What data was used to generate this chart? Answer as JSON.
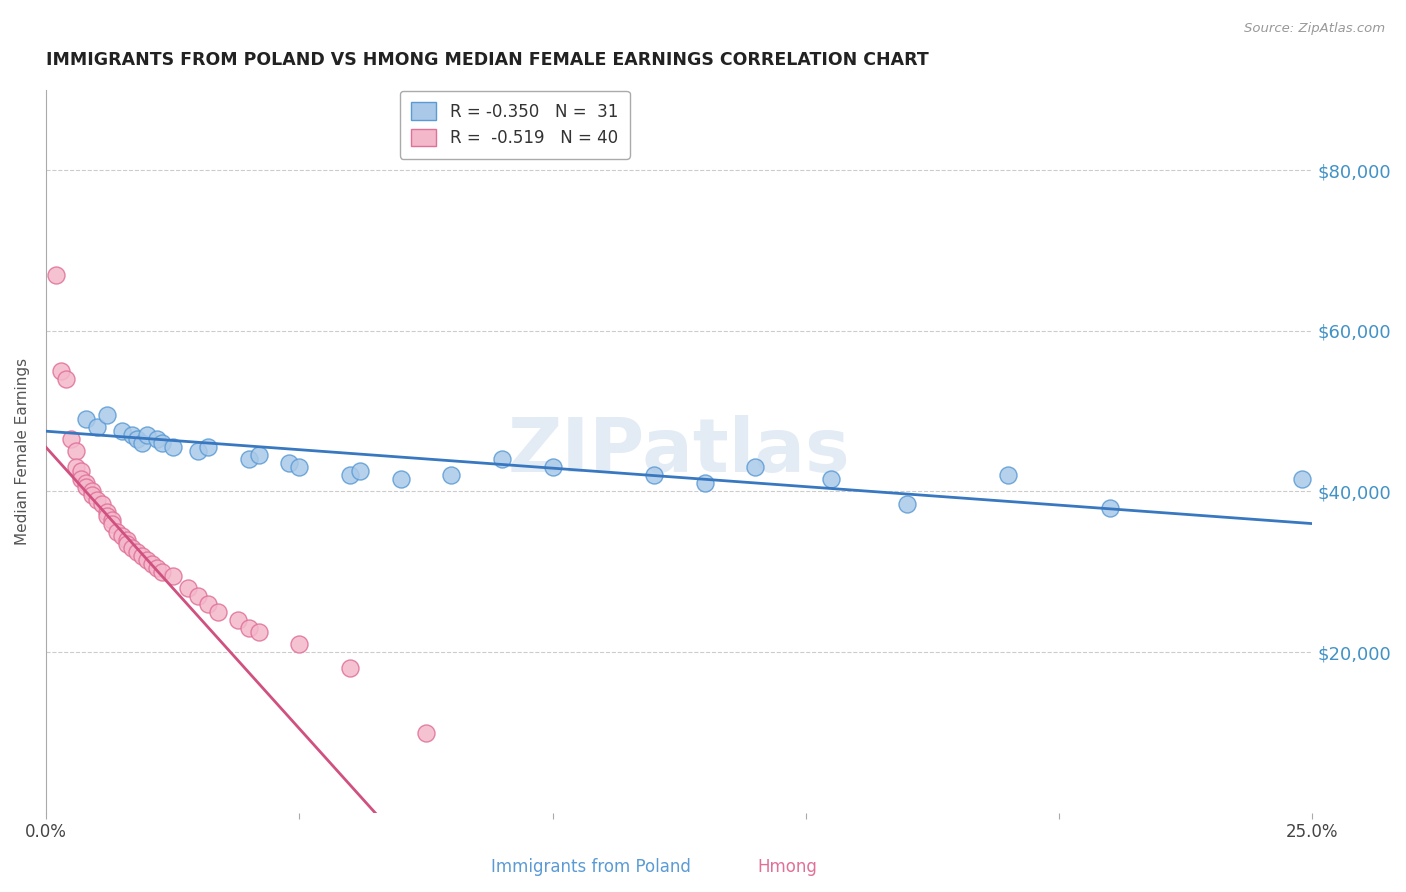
{
  "title": "IMMIGRANTS FROM POLAND VS HMONG MEDIAN FEMALE EARNINGS CORRELATION CHART",
  "source": "Source: ZipAtlas.com",
  "ylabel": "Median Female Earnings",
  "watermark": "ZIPatlas",
  "poland_scatter": [
    [
      0.008,
      49000
    ],
    [
      0.01,
      48000
    ],
    [
      0.012,
      49500
    ],
    [
      0.015,
      47500
    ],
    [
      0.017,
      47000
    ],
    [
      0.018,
      46500
    ],
    [
      0.019,
      46000
    ],
    [
      0.02,
      47000
    ],
    [
      0.022,
      46500
    ],
    [
      0.023,
      46000
    ],
    [
      0.025,
      45500
    ],
    [
      0.03,
      45000
    ],
    [
      0.032,
      45500
    ],
    [
      0.04,
      44000
    ],
    [
      0.042,
      44500
    ],
    [
      0.048,
      43500
    ],
    [
      0.05,
      43000
    ],
    [
      0.06,
      42000
    ],
    [
      0.062,
      42500
    ],
    [
      0.07,
      41500
    ],
    [
      0.08,
      42000
    ],
    [
      0.09,
      44000
    ],
    [
      0.1,
      43000
    ],
    [
      0.12,
      42000
    ],
    [
      0.13,
      41000
    ],
    [
      0.14,
      43000
    ],
    [
      0.155,
      41500
    ],
    [
      0.17,
      38500
    ],
    [
      0.19,
      42000
    ],
    [
      0.21,
      38000
    ],
    [
      0.248,
      41500
    ]
  ],
  "hmong_scatter": [
    [
      0.002,
      67000
    ],
    [
      0.003,
      55000
    ],
    [
      0.004,
      54000
    ],
    [
      0.005,
      46500
    ],
    [
      0.006,
      45000
    ],
    [
      0.006,
      43000
    ],
    [
      0.007,
      42500
    ],
    [
      0.007,
      41500
    ],
    [
      0.008,
      41000
    ],
    [
      0.008,
      40500
    ],
    [
      0.009,
      40000
    ],
    [
      0.009,
      39500
    ],
    [
      0.01,
      39000
    ],
    [
      0.011,
      38500
    ],
    [
      0.012,
      37500
    ],
    [
      0.012,
      37000
    ],
    [
      0.013,
      36500
    ],
    [
      0.013,
      36000
    ],
    [
      0.014,
      35000
    ],
    [
      0.015,
      34500
    ],
    [
      0.016,
      34000
    ],
    [
      0.016,
      33500
    ],
    [
      0.017,
      33000
    ],
    [
      0.018,
      32500
    ],
    [
      0.019,
      32000
    ],
    [
      0.02,
      31500
    ],
    [
      0.021,
      31000
    ],
    [
      0.022,
      30500
    ],
    [
      0.023,
      30000
    ],
    [
      0.025,
      29500
    ],
    [
      0.028,
      28000
    ],
    [
      0.03,
      27000
    ],
    [
      0.032,
      26000
    ],
    [
      0.034,
      25000
    ],
    [
      0.038,
      24000
    ],
    [
      0.04,
      23000
    ],
    [
      0.042,
      22500
    ],
    [
      0.05,
      21000
    ],
    [
      0.06,
      18000
    ],
    [
      0.075,
      10000
    ]
  ],
  "poland_line": {
    "x": [
      0.0,
      0.25
    ],
    "y": [
      47500,
      36000
    ]
  },
  "hmong_line": {
    "x": [
      0.0,
      0.065
    ],
    "y": [
      45500,
      0
    ]
  },
  "poland_color": "#aac9e8",
  "poland_edge_color": "#5b9bd5",
  "hmong_color": "#f4b8cb",
  "hmong_edge_color": "#e07098",
  "poland_line_color": "#3878c0",
  "hmong_line_color": "#d05080",
  "background_color": "#ffffff",
  "ylim": [
    0,
    90000
  ],
  "xlim": [
    0.0,
    0.25
  ],
  "xticks": [
    0.0,
    0.05,
    0.1,
    0.15,
    0.2,
    0.25
  ],
  "xtick_labels": [
    "0.0%",
    "",
    "",
    "",
    "",
    "25.0%"
  ],
  "yticks": [
    20000,
    40000,
    60000,
    80000
  ],
  "ytick_labels": [
    "$20,000",
    "$40,000",
    "$60,000",
    "$80,000"
  ],
  "legend_label_poland": "R = -0.350   N =  31",
  "legend_label_hmong": "R =  -0.519   N = 40",
  "bottom_label_poland": "Immigrants from Poland",
  "bottom_label_hmong": "Hmong"
}
